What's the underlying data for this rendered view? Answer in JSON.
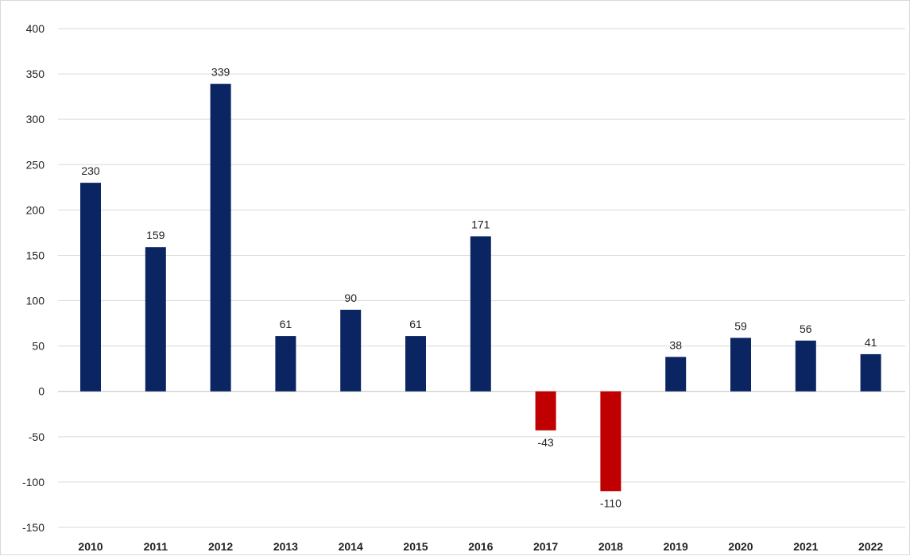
{
  "chart_data": {
    "type": "bar",
    "title": "",
    "xlabel": "",
    "ylabel": "",
    "categories": [
      "2010",
      "2011",
      "2012",
      "2013",
      "2014",
      "2015",
      "2016",
      "2017",
      "2018",
      "2019",
      "2020",
      "2021",
      "2022"
    ],
    "values": [
      230,
      159,
      339,
      61,
      90,
      61,
      171,
      -43,
      -110,
      38,
      59,
      56,
      41
    ],
    "data_labels": [
      "230",
      "159",
      "339",
      "61",
      "90",
      "61",
      "171",
      "-43",
      "-110",
      "38",
      "59",
      "56",
      "41"
    ],
    "ylim": [
      -150,
      400
    ],
    "yticks": [
      400,
      350,
      300,
      250,
      200,
      150,
      100,
      50,
      0,
      -50,
      -100,
      -150
    ],
    "ytick_labels": [
      "400",
      "350",
      "300",
      "250",
      "200",
      "150",
      "100",
      "50",
      "0",
      "-50",
      "-100",
      "-150"
    ],
    "grid": true,
    "legend": "none",
    "colors": {
      "positive": "#0b2462",
      "negative": "#c00000",
      "grid": "#d9d9d9"
    }
  }
}
